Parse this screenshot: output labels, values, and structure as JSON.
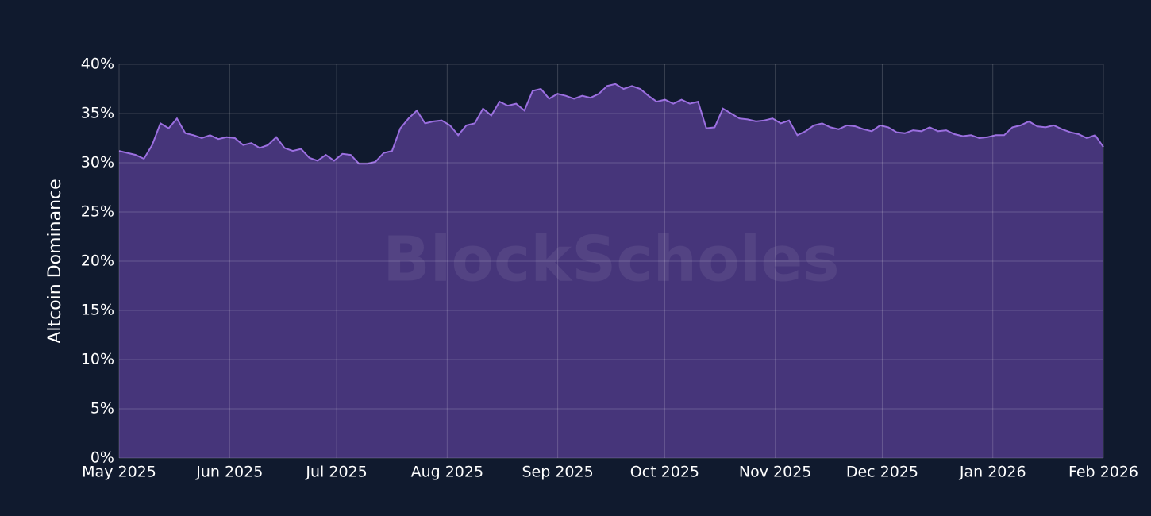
{
  "chart_data": {
    "type": "area",
    "ylabel": "Altcoin Dominance",
    "watermark": "BlockScholes",
    "xlim": [
      "2025-05",
      "2026-02"
    ],
    "xticks": [
      {
        "value": "2025-05",
        "label": "May 2025"
      },
      {
        "value": "2025-06",
        "label": "Jun 2025"
      },
      {
        "value": "2025-07",
        "label": "Jul 2025"
      },
      {
        "value": "2025-08",
        "label": "Aug 2025"
      },
      {
        "value": "2025-09",
        "label": "Sep 2025"
      },
      {
        "value": "2025-10",
        "label": "Oct 2025"
      },
      {
        "value": "2025-11",
        "label": "Nov 2025"
      },
      {
        "value": "2025-12",
        "label": "Dec 2025"
      },
      {
        "value": "2026-01",
        "label": "Jan 2026"
      },
      {
        "value": "2026-02",
        "label": "Feb 2026"
      }
    ],
    "ylim": [
      0,
      40
    ],
    "yticks": [
      {
        "value": 0,
        "label": "0%"
      },
      {
        "value": 5,
        "label": "5%"
      },
      {
        "value": 10,
        "label": "10%"
      },
      {
        "value": 15,
        "label": "15%"
      },
      {
        "value": 20,
        "label": "20%"
      },
      {
        "value": 25,
        "label": "25%"
      },
      {
        "value": 30,
        "label": "30%"
      },
      {
        "value": 35,
        "label": "35%"
      },
      {
        "value": 40,
        "label": "40%"
      }
    ],
    "grid": true,
    "series": [
      {
        "name": "Altcoin Dominance",
        "color": "#9b6fe0",
        "fill": "#46357a",
        "values": [
          31.2,
          31.0,
          30.8,
          30.4,
          31.8,
          34.0,
          33.5,
          34.5,
          33.0,
          32.8,
          32.5,
          32.8,
          32.4,
          32.6,
          32.5,
          31.8,
          32.0,
          31.5,
          31.8,
          32.6,
          31.5,
          31.2,
          31.4,
          30.5,
          30.2,
          30.8,
          30.2,
          30.9,
          30.8,
          29.9,
          29.9,
          30.1,
          31.0,
          31.2,
          33.5,
          34.5,
          35.3,
          34.0,
          34.2,
          34.3,
          33.8,
          32.8,
          33.8,
          34.0,
          35.5,
          34.8,
          36.2,
          35.8,
          36.0,
          35.3,
          37.3,
          37.5,
          36.5,
          37.0,
          36.8,
          36.5,
          36.8,
          36.6,
          37.0,
          37.8,
          38.0,
          37.5,
          37.8,
          37.5,
          36.8,
          36.2,
          36.4,
          36.0,
          36.4,
          36.0,
          36.2,
          33.5,
          33.6,
          35.5,
          35.0,
          34.5,
          34.4,
          34.2,
          34.3,
          34.5,
          34.0,
          34.3,
          32.8,
          33.2,
          33.8,
          34.0,
          33.6,
          33.4,
          33.8,
          33.7,
          33.4,
          33.2,
          33.8,
          33.6,
          33.1,
          33.0,
          33.3,
          33.2,
          33.6,
          33.2,
          33.3,
          32.9,
          32.7,
          32.8,
          32.5,
          32.6,
          32.8,
          32.8,
          33.6,
          33.8,
          34.2,
          33.7,
          33.6,
          33.8,
          33.4,
          33.1,
          32.9,
          32.5,
          32.8,
          31.6
        ]
      }
    ]
  }
}
